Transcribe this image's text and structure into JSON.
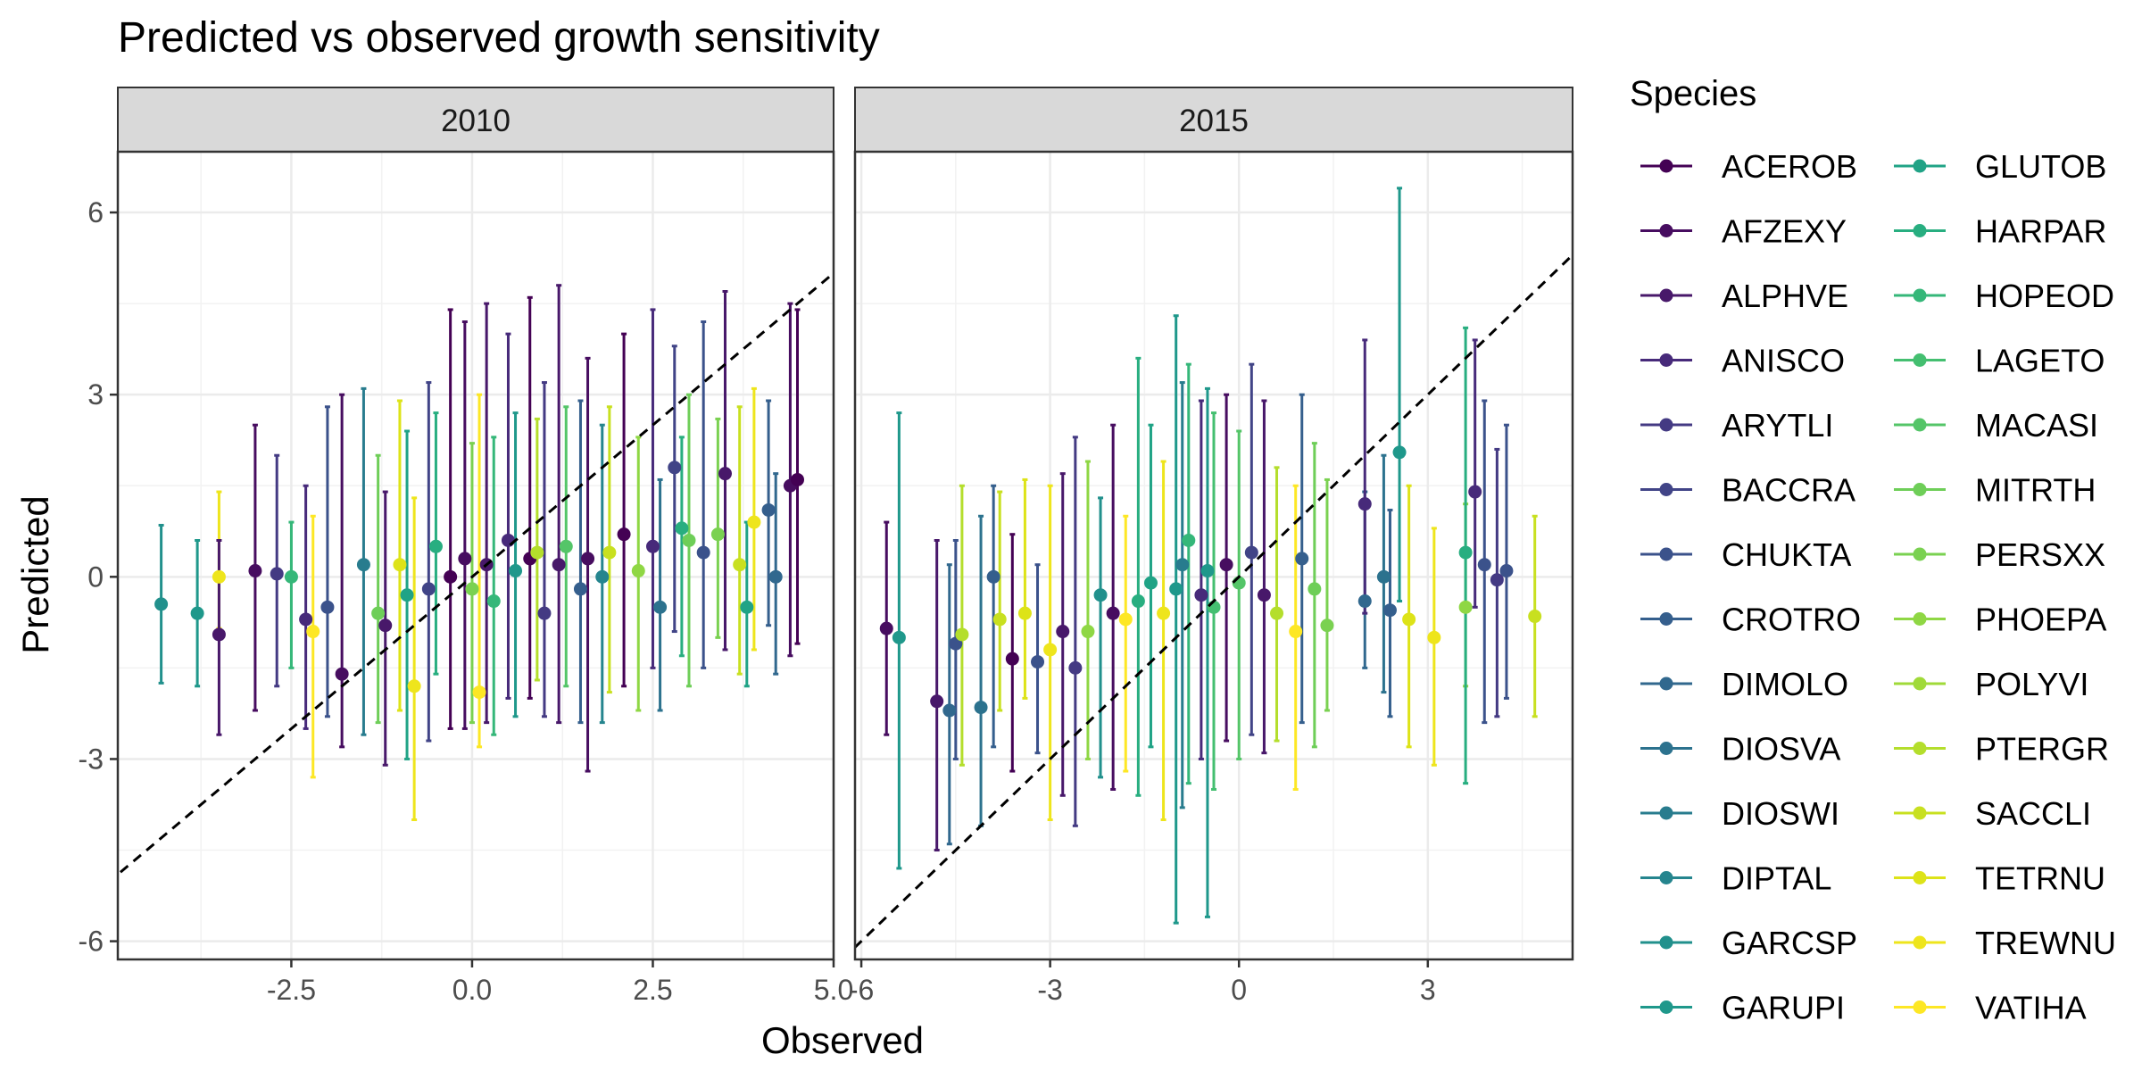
{
  "chart_data": {
    "type": "scatter",
    "title": "Predicted vs observed growth sensitivity",
    "xlabel": "Observed",
    "ylabel": "Predicted",
    "legend_title": "Species",
    "legend_position": "right",
    "grid": true,
    "reference_line": "y = x (dashed)",
    "error_bars": true,
    "species": [
      "ACEROB",
      "AFZEXY",
      "ALPHVE",
      "ANISCO",
      "ARYTLI",
      "BACCRA",
      "CHUKTA",
      "CROTRO",
      "DIMOLO",
      "DIOSVA",
      "DIOSWI",
      "DIPTAL",
      "GARCSP",
      "GARUPI",
      "GLUTOB",
      "HARPAR",
      "HOPEOD",
      "LAGETO",
      "MACASI",
      "MITRTH",
      "PERSXX",
      "PHOEPA",
      "POLYVI",
      "PTERGR",
      "SACCLI",
      "TETRNU",
      "TREWNU",
      "VATIHA"
    ],
    "species_colors": [
      "#440154",
      "#470D60",
      "#48186A",
      "#472A7A",
      "#443A83",
      "#414487",
      "#3B528B",
      "#355F8D",
      "#31688E",
      "#2C728E",
      "#287C8E",
      "#25858E",
      "#21908C",
      "#1F988B",
      "#20A386",
      "#28AE80",
      "#35B779",
      "#44BF70",
      "#54C568",
      "#6ECE58",
      "#7AD151",
      "#8FD744",
      "#A0DA39",
      "#B4DE2C",
      "#C8E020",
      "#DDE318",
      "#EEE51C",
      "#FDE725"
    ],
    "panels": [
      {
        "strip": "2010",
        "xlim": [
          -4.9,
          5.0
        ],
        "ylim": [
          -6.3,
          7.0
        ],
        "x_ticks": [
          -2.5,
          0.0,
          2.5,
          5.0
        ],
        "x_tick_labels": [
          "-2.5",
          "0.0",
          "2.5",
          "5.0"
        ],
        "y_ticks": [
          -6,
          -3,
          0,
          3,
          6
        ],
        "y_tick_labels": [
          "-6",
          "-3",
          "0",
          "3",
          "6"
        ],
        "points": [
          {
            "species": "GARCSP",
            "x": -4.3,
            "y": -0.45,
            "lo": -1.75,
            "hi": 0.85
          },
          {
            "species": "GARUPI",
            "x": -3.8,
            "y": -0.6,
            "lo": -1.8,
            "hi": 0.6
          },
          {
            "species": "TREWNU",
            "x": -3.5,
            "y": 0.0,
            "lo": -0.85,
            "hi": 1.4
          },
          {
            "species": "ALPHVE",
            "x": -3.5,
            "y": -0.95,
            "lo": -2.6,
            "hi": 0.6
          },
          {
            "species": "AFZEXY",
            "x": -3.0,
            "y": 0.1,
            "lo": -2.2,
            "hi": 2.5
          },
          {
            "species": "ARYTLI",
            "x": -2.7,
            "y": 0.05,
            "lo": -1.8,
            "hi": 2.0
          },
          {
            "species": "HOPEOD",
            "x": -2.5,
            "y": 0.0,
            "lo": -1.5,
            "hi": 0.9
          },
          {
            "species": "ANISCO",
            "x": -2.3,
            "y": -0.7,
            "lo": -2.5,
            "hi": 1.5
          },
          {
            "species": "VATIHA",
            "x": -2.2,
            "y": -0.9,
            "lo": -3.3,
            "hi": 1.0
          },
          {
            "species": "CHUKTA",
            "x": -2.0,
            "y": -0.5,
            "lo": -2.3,
            "hi": 2.8
          },
          {
            "species": "AFZEXY",
            "x": -1.8,
            "y": -1.6,
            "lo": -2.8,
            "hi": 3.0
          },
          {
            "species": "DIOSWI",
            "x": -1.5,
            "y": 0.2,
            "lo": -2.6,
            "hi": 3.1
          },
          {
            "species": "MITRTH",
            "x": -1.3,
            "y": -0.6,
            "lo": -2.4,
            "hi": 2.0
          },
          {
            "species": "ALPHVE",
            "x": -1.2,
            "y": -0.8,
            "lo": -3.1,
            "hi": 1.4
          },
          {
            "species": "TETRNU",
            "x": -1.0,
            "y": 0.2,
            "lo": -2.2,
            "hi": 2.9
          },
          {
            "species": "GLUTOB",
            "x": -0.9,
            "y": -0.3,
            "lo": -3.0,
            "hi": 2.4
          },
          {
            "species": "TREWNU",
            "x": -0.8,
            "y": -1.8,
            "lo": -4.0,
            "hi": 1.3
          },
          {
            "species": "BACCRA",
            "x": -0.6,
            "y": -0.2,
            "lo": -2.7,
            "hi": 3.2
          },
          {
            "species": "HARPAR",
            "x": -0.5,
            "y": 0.5,
            "lo": -1.6,
            "hi": 2.7
          },
          {
            "species": "ACEROB",
            "x": -0.3,
            "y": 0.0,
            "lo": -2.5,
            "hi": 4.4
          },
          {
            "species": "AFZEXY",
            "x": -0.1,
            "y": 0.3,
            "lo": -2.5,
            "hi": 4.2
          },
          {
            "species": "PERSXX",
            "x": 0.0,
            "y": -0.2,
            "lo": -2.4,
            "hi": 2.2
          },
          {
            "species": "VATIHA",
            "x": 0.1,
            "y": -1.9,
            "lo": -2.8,
            "hi": 3.0
          },
          {
            "species": "ALPHVE",
            "x": 0.2,
            "y": 0.2,
            "lo": -2.4,
            "hi": 4.5
          },
          {
            "species": "HOPEOD",
            "x": 0.3,
            "y": -0.4,
            "lo": -2.6,
            "hi": 2.3
          },
          {
            "species": "ANISCO",
            "x": 0.5,
            "y": 0.6,
            "lo": -2.0,
            "hi": 4.0
          },
          {
            "species": "GARUPI",
            "x": 0.6,
            "y": 0.1,
            "lo": -2.3,
            "hi": 2.7
          },
          {
            "species": "ACEROB",
            "x": 0.8,
            "y": 0.3,
            "lo": -2.0,
            "hi": 4.6
          },
          {
            "species": "PTERGR",
            "x": 0.9,
            "y": 0.4,
            "lo": -1.7,
            "hi": 2.6
          },
          {
            "species": "ARYTLI",
            "x": 1.0,
            "y": -0.6,
            "lo": -2.3,
            "hi": 3.2
          },
          {
            "species": "ALPHVE",
            "x": 1.2,
            "y": 0.2,
            "lo": -2.4,
            "hi": 4.8
          },
          {
            "species": "MACASI",
            "x": 1.3,
            "y": 0.5,
            "lo": -1.8,
            "hi": 2.8
          },
          {
            "species": "CROTRO",
            "x": 1.5,
            "y": -0.2,
            "lo": -2.4,
            "hi": 2.9
          },
          {
            "species": "AFZEXY",
            "x": 1.6,
            "y": 0.3,
            "lo": -3.2,
            "hi": 3.6
          },
          {
            "species": "DIPTAL",
            "x": 1.8,
            "y": 0.0,
            "lo": -2.4,
            "hi": 2.5
          },
          {
            "species": "SACCLI",
            "x": 1.9,
            "y": 0.4,
            "lo": -1.9,
            "hi": 2.8
          },
          {
            "species": "ACEROB",
            "x": 2.1,
            "y": 0.7,
            "lo": -1.8,
            "hi": 4.0
          },
          {
            "species": "PHOEPA",
            "x": 2.3,
            "y": 0.1,
            "lo": -2.2,
            "hi": 2.3
          },
          {
            "species": "ANISCO",
            "x": 2.5,
            "y": 0.5,
            "lo": -1.5,
            "hi": 4.4
          },
          {
            "species": "DIOSVA",
            "x": 2.6,
            "y": -0.5,
            "lo": -2.2,
            "hi": 1.6
          },
          {
            "species": "BACCRA",
            "x": 2.8,
            "y": 1.8,
            "lo": -0.9,
            "hi": 3.8
          },
          {
            "species": "HARPAR",
            "x": 2.9,
            "y": 0.8,
            "lo": -1.3,
            "hi": 2.3
          },
          {
            "species": "MITRTH",
            "x": 3.0,
            "y": 0.6,
            "lo": -1.8,
            "hi": 3.0
          },
          {
            "species": "CHUKTA",
            "x": 3.2,
            "y": 0.4,
            "lo": -1.5,
            "hi": 4.2
          },
          {
            "species": "PERSXX",
            "x": 3.4,
            "y": 0.7,
            "lo": -1.0,
            "hi": 2.6
          },
          {
            "species": "ALPHVE",
            "x": 3.5,
            "y": 1.7,
            "lo": -1.2,
            "hi": 4.7
          },
          {
            "species": "SACCLI",
            "x": 3.7,
            "y": 0.2,
            "lo": -1.6,
            "hi": 2.8
          },
          {
            "species": "GLUTOB",
            "x": 3.8,
            "y": -0.5,
            "lo": -1.8,
            "hi": 0.9
          },
          {
            "species": "TREWNU",
            "x": 3.9,
            "y": 0.9,
            "lo": -1.2,
            "hi": 3.1
          },
          {
            "species": "CROTRO",
            "x": 4.1,
            "y": 1.1,
            "lo": -0.8,
            "hi": 2.9
          },
          {
            "species": "DIMOLO",
            "x": 4.2,
            "y": 0.0,
            "lo": -1.6,
            "hi": 1.7
          },
          {
            "species": "AFZEXY",
            "x": 4.4,
            "y": 1.5,
            "lo": -1.3,
            "hi": 4.5
          },
          {
            "species": "ACEROB",
            "x": 4.5,
            "y": 1.6,
            "lo": -1.1,
            "hi": 4.4
          }
        ]
      },
      {
        "strip": "2015",
        "xlim": [
          -6.1,
          5.3
        ],
        "ylim": [
          -6.3,
          7.0
        ],
        "x_ticks": [
          -6,
          -3,
          0,
          3
        ],
        "x_tick_labels": [
          "-6",
          "-3",
          "0",
          "3"
        ],
        "y_ticks": [
          -6,
          -3,
          0,
          3,
          6
        ],
        "y_tick_labels": [
          "-6",
          "-3",
          "0",
          "3",
          "6"
        ],
        "points": [
          {
            "species": "AFZEXY",
            "x": -5.6,
            "y": -0.85,
            "lo": -2.6,
            "hi": 0.9
          },
          {
            "species": "GARUPI",
            "x": -5.4,
            "y": -1.0,
            "lo": -4.8,
            "hi": 2.7
          },
          {
            "species": "ALPHVE",
            "x": -4.8,
            "y": -2.05,
            "lo": -4.5,
            "hi": 0.6
          },
          {
            "species": "DIMOLO",
            "x": -4.6,
            "y": -2.2,
            "lo": -4.4,
            "hi": 0.2
          },
          {
            "species": "CHUKTA",
            "x": -4.5,
            "y": -1.1,
            "lo": -3.0,
            "hi": 0.6
          },
          {
            "species": "PTERGR",
            "x": -4.4,
            "y": -0.95,
            "lo": -3.1,
            "hi": 1.5
          },
          {
            "species": "DIOSVA",
            "x": -4.1,
            "y": -2.15,
            "lo": -4.1,
            "hi": 1.0
          },
          {
            "species": "CROTRO",
            "x": -3.9,
            "y": 0.0,
            "lo": -2.8,
            "hi": 1.5
          },
          {
            "species": "SACCLI",
            "x": -3.8,
            "y": -0.7,
            "lo": -2.2,
            "hi": 1.4
          },
          {
            "species": "ACEROB",
            "x": -3.6,
            "y": -1.35,
            "lo": -3.2,
            "hi": 0.7
          },
          {
            "species": "TETRNU",
            "x": -3.4,
            "y": -0.6,
            "lo": -2.0,
            "hi": 1.6
          },
          {
            "species": "CHUKTA",
            "x": -3.2,
            "y": -1.4,
            "lo": -2.9,
            "hi": 0.2
          },
          {
            "species": "TREWNU",
            "x": -3.0,
            "y": -1.2,
            "lo": -4.0,
            "hi": 1.5
          },
          {
            "species": "ALPHVE",
            "x": -2.8,
            "y": -0.9,
            "lo": -3.6,
            "hi": 1.7
          },
          {
            "species": "ARYTLI",
            "x": -2.6,
            "y": -1.5,
            "lo": -4.1,
            "hi": 2.3
          },
          {
            "species": "PHOEPA",
            "x": -2.4,
            "y": -0.9,
            "lo": -3.0,
            "hi": 1.9
          },
          {
            "species": "GARCSP",
            "x": -2.2,
            "y": -0.3,
            "lo": -3.3,
            "hi": 1.3
          },
          {
            "species": "AFZEXY",
            "x": -2.0,
            "y": -0.6,
            "lo": -3.5,
            "hi": 2.5
          },
          {
            "species": "VATIHA",
            "x": -1.8,
            "y": -0.7,
            "lo": -3.2,
            "hi": 1.0
          },
          {
            "species": "HARPAR",
            "x": -1.6,
            "y": -0.4,
            "lo": -3.6,
            "hi": 3.6
          },
          {
            "species": "GLUTOB",
            "x": -1.4,
            "y": -0.1,
            "lo": -2.8,
            "hi": 2.5
          },
          {
            "species": "TREWNU",
            "x": -1.2,
            "y": -0.6,
            "lo": -4.0,
            "hi": 1.9
          },
          {
            "species": "GARUPI",
            "x": -1.0,
            "y": -0.2,
            "lo": -5.7,
            "hi": 4.3
          },
          {
            "species": "DIOSWI",
            "x": -0.9,
            "y": 0.2,
            "lo": -3.8,
            "hi": 3.2
          },
          {
            "species": "HOPEOD",
            "x": -0.8,
            "y": 0.6,
            "lo": -3.4,
            "hi": 3.5
          },
          {
            "species": "ANISCO",
            "x": -0.6,
            "y": -0.3,
            "lo": -3.0,
            "hi": 2.9
          },
          {
            "species": "GARUPI",
            "x": -0.5,
            "y": 0.1,
            "lo": -5.6,
            "hi": 3.1
          },
          {
            "species": "LAGETO",
            "x": -0.4,
            "y": -0.5,
            "lo": -3.5,
            "hi": 2.7
          },
          {
            "species": "AFZEXY",
            "x": -0.2,
            "y": 0.2,
            "lo": -2.7,
            "hi": 3.0
          },
          {
            "species": "MACASI",
            "x": 0.0,
            "y": -0.1,
            "lo": -3.0,
            "hi": 2.4
          },
          {
            "species": "BACCRA",
            "x": 0.2,
            "y": 0.4,
            "lo": -2.6,
            "hi": 3.5
          },
          {
            "species": "ALPHVE",
            "x": 0.4,
            "y": -0.3,
            "lo": -2.9,
            "hi": 2.9
          },
          {
            "species": "PTERGR",
            "x": 0.6,
            "y": -0.6,
            "lo": -2.7,
            "hi": 1.8
          },
          {
            "species": "VATIHA",
            "x": 0.9,
            "y": -0.9,
            "lo": -3.5,
            "hi": 1.5
          },
          {
            "species": "CROTRO",
            "x": 1.0,
            "y": 0.3,
            "lo": -2.4,
            "hi": 3.0
          },
          {
            "species": "MITRTH",
            "x": 1.2,
            "y": -0.2,
            "lo": -2.8,
            "hi": 2.2
          },
          {
            "species": "PERSXX",
            "x": 1.4,
            "y": -0.8,
            "lo": -2.2,
            "hi": 1.6
          },
          {
            "species": "DIMOLO",
            "x": 2.0,
            "y": -0.4,
            "lo": -1.5,
            "hi": 1.4
          },
          {
            "species": "ANISCO",
            "x": 2.0,
            "y": 1.2,
            "lo": -0.6,
            "hi": 3.9
          },
          {
            "species": "DIOSVA",
            "x": 2.3,
            "y": 0.0,
            "lo": -1.9,
            "hi": 2.0
          },
          {
            "species": "CROTRO",
            "x": 2.4,
            "y": -0.55,
            "lo": -2.3,
            "hi": 1.1
          },
          {
            "species": "GARUPI",
            "x": 2.55,
            "y": 2.05,
            "lo": -0.4,
            "hi": 6.4
          },
          {
            "species": "TETRNU",
            "x": 2.7,
            "y": -0.7,
            "lo": -2.8,
            "hi": 1.5
          },
          {
            "species": "TREWNU",
            "x": 3.1,
            "y": -1.0,
            "lo": -3.1,
            "hi": 0.8
          },
          {
            "species": "PHOEPA",
            "x": 3.6,
            "y": -0.5,
            "lo": -1.8,
            "hi": 1.2
          },
          {
            "species": "HARPAR",
            "x": 3.6,
            "y": 0.4,
            "lo": -3.4,
            "hi": 4.1
          },
          {
            "species": "ANISCO",
            "x": 3.75,
            "y": 1.4,
            "lo": -0.5,
            "hi": 3.9
          },
          {
            "species": "CHUKTA",
            "x": 3.9,
            "y": 0.2,
            "lo": -2.4,
            "hi": 2.9
          },
          {
            "species": "ARYTLI",
            "x": 4.1,
            "y": -0.05,
            "lo": -2.3,
            "hi": 2.1
          },
          {
            "species": "CHUKTA",
            "x": 4.25,
            "y": 0.1,
            "lo": -2.0,
            "hi": 2.5
          },
          {
            "species": "SACCLI",
            "x": 4.7,
            "y": -0.65,
            "lo": -2.3,
            "hi": 1.0
          }
        ]
      }
    ]
  }
}
